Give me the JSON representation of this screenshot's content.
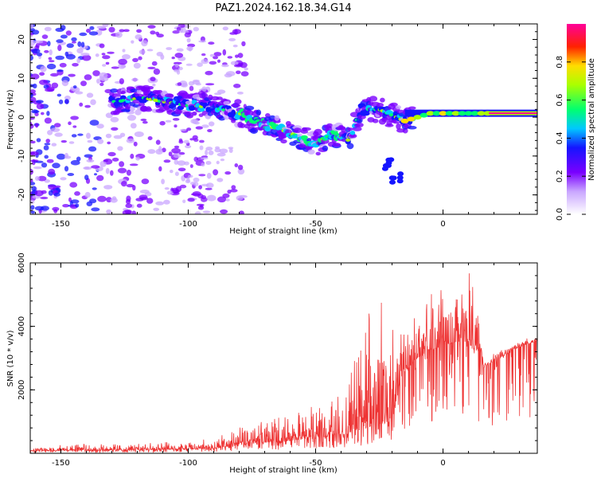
{
  "title": "PAZ1.2024.162.18.34.G14",
  "chart_data": [
    {
      "type": "heatmap",
      "xlabel": "Height of straight line (km)",
      "ylabel": "Frequency (Hz)",
      "xlim": [
        -162,
        37
      ],
      "ylim": [
        -25,
        24
      ],
      "xticks": [
        -150,
        -100,
        -50,
        0
      ],
      "yticks": [
        -20,
        -10,
        0,
        10,
        20
      ],
      "colorbar": {
        "label": "Normalized spectral amplitude",
        "ticks": [
          "0.0",
          "0.2",
          "0.4",
          "0.6",
          "0.8"
        ],
        "range": [
          0,
          1
        ],
        "colormap": "rainbow: white-violet-blue-cyan-green-yellow-red-magenta"
      },
      "ridge": [
        {
          "x": -128,
          "y": 4
        },
        {
          "x": -118,
          "y": 5
        },
        {
          "x": -110,
          "y": 4
        },
        {
          "x": -100,
          "y": 3
        },
        {
          "x": -90,
          "y": 2.5
        },
        {
          "x": -80,
          "y": 1
        },
        {
          "x": -70,
          "y": -2
        },
        {
          "x": -60,
          "y": -4
        },
        {
          "x": -50,
          "y": -7
        },
        {
          "x": -43,
          "y": -4
        },
        {
          "x": -37,
          "y": -6
        },
        {
          "x": -32,
          "y": 2
        },
        {
          "x": -25,
          "y": 2
        },
        {
          "x": -15,
          "y": -1
        },
        {
          "x": -5,
          "y": 1
        },
        {
          "x": 5,
          "y": 1
        },
        {
          "x": 20,
          "y": 1
        },
        {
          "x": 37,
          "y": 1
        }
      ],
      "side_feature": [
        {
          "x": -22,
          "y": -12
        },
        {
          "x": -18,
          "y": -16
        }
      ]
    },
    {
      "type": "line",
      "xlabel": "Height of straight line (km)",
      "ylabel": "SNR (10 * v/v)",
      "xlim": [
        -162,
        37
      ],
      "ylim": [
        0,
        6000
      ],
      "xticks": [
        -150,
        -100,
        -50,
        0
      ],
      "yticks": [
        2000,
        4000,
        6000
      ],
      "color": "#ee3333",
      "envelope": [
        {
          "x": -162,
          "base": 80,
          "amp": 150
        },
        {
          "x": -120,
          "base": 100,
          "amp": 250
        },
        {
          "x": -90,
          "base": 150,
          "amp": 300
        },
        {
          "x": -75,
          "base": 300,
          "amp": 700
        },
        {
          "x": -60,
          "base": 400,
          "amp": 800
        },
        {
          "x": -48,
          "base": 500,
          "amp": 1100
        },
        {
          "x": -38,
          "base": 600,
          "amp": 1500
        },
        {
          "x": -32,
          "base": 800,
          "amp": 3300
        },
        {
          "x": -25,
          "base": 900,
          "amp": 4500
        },
        {
          "x": -20,
          "base": 1000,
          "amp": 3000
        },
        {
          "x": -16,
          "base": 2500,
          "amp": 1800
        },
        {
          "x": -10,
          "base": 3000,
          "amp": 1300
        },
        {
          "x": -3,
          "base": 3300,
          "amp": 2000
        },
        {
          "x": 5,
          "base": 3500,
          "amp": 2200
        },
        {
          "x": 10,
          "base": 3300,
          "amp": 2600
        },
        {
          "x": 15,
          "base": 3200,
          "amp": 1900
        },
        {
          "x": 16,
          "base": 2700,
          "amp": 300
        },
        {
          "x": 20,
          "base": 2900,
          "amp": 350
        },
        {
          "x": 30,
          "base": 3350,
          "amp": 250
        },
        {
          "x": 37,
          "base": 3550,
          "amp": 150
        }
      ]
    }
  ]
}
